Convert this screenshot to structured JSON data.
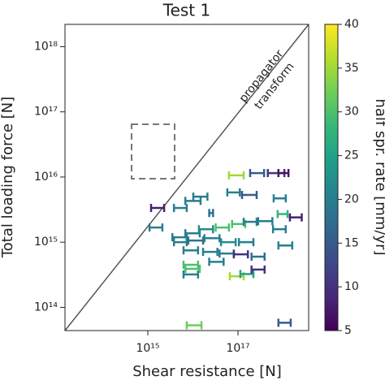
{
  "chart_data": {
    "type": "errorbar-scatter",
    "title": "Test 1",
    "x_label": "Shear resistance [N]",
    "y_label": "Total loading force [N]",
    "colorbar_label": "half spr. rate [mm/yr]",
    "annotations": [
      "propagator",
      "transform"
    ],
    "log_x": true,
    "log_y": true,
    "xlim": [
      14500000000000.0,
      3.7e+18
    ],
    "ylim": [
      44000000000000.0,
      2.2e+18
    ],
    "xticks": [
      {
        "value": 1000000000000000.0,
        "label": "10¹⁵"
      },
      {
        "value": 1e+17,
        "label": "10¹⁷"
      }
    ],
    "yticks": [
      {
        "value": 100000000000000.0,
        "label": "10¹⁴"
      },
      {
        "value": 1000000000000000.0,
        "label": "10¹⁵"
      },
      {
        "value": 1e+16,
        "label": "10¹⁶"
      },
      {
        "value": 1e+17,
        "label": "10¹⁷"
      },
      {
        "value": 1e+18,
        "label": "10¹⁸"
      }
    ],
    "colormap": [
      "#440154",
      "#482878",
      "#3e4989",
      "#31688e",
      "#26828e",
      "#1f9e89",
      "#35b779",
      "#6ece58",
      "#b5de2b",
      "#fde725"
    ],
    "clim": [
      5,
      40
    ],
    "cticks": [
      5,
      10,
      15,
      20,
      25,
      30,
      35,
      40
    ],
    "x_low": [
      6.3e+16,
      1.86e+17,
      4.6e+17,
      7.9e+17,
      3800000000000000.0,
      6800000000000000.0,
      1.02e+16,
      5.8e+16,
      1.23e+17,
      6.2e+17,
      2.3e+16,
      7.6e+17,
      1.42e+18,
      1090000000000000.0,
      3500000000000000.0,
      6800000000000000.0,
      1.36e+16,
      3.2e+16,
      7.4e+16,
      1.34e+17,
      2.8e+17,
      6e+17,
      3800000000000000.0,
      7900000000000000.0,
      1.8e+16,
      4.2e+16,
      1.05e+17,
      7.9e+17,
      6200000000000000.0,
      1.68e+16,
      3.9e+16,
      8.1e+16,
      2e+17,
      6200000000000000.0,
      2.3e+16,
      6.6e+16,
      1.13e+17,
      2e+17,
      6200000000000000.0,
      6800000000000000.0,
      7300000000000000.0,
      7.9e+17,
      1180000000000000.0
    ],
    "x_high": [
      1.34e+17,
      3.8e+17,
      1.07e+18,
      1.32e+18,
      7300000000000000.0,
      1.48e+16,
      2.1e+16,
      1.1e+17,
      2.6e+17,
      1.15e+18,
      2.8e+16,
      1.26e+18,
      2.6e+18,
      2100000000000000.0,
      7300000000000000.0,
      1.42e+16,
      2.8e+16,
      6.3e+16,
      1.45e+17,
      2.6e+17,
      5.8e+17,
      1.15e+18,
      7300000000000000.0,
      1.68e+16,
      3.9e+16,
      8.9e+16,
      2.2e+17,
      1.6e+18,
      1.3e+16,
      3.5e+16,
      8.1e+16,
      1.66e+17,
      3.9e+17,
      1.3e+16,
      4.8e+16,
      1.34e+17,
      2.2e+17,
      3.9e+17,
      1.3e+16,
      1.42e+16,
      1.55e+16,
      1.48e+18,
      2300000000000000.0
    ],
    "y": [
      1.06e+16,
      1.15e+16,
      1.15e+16,
      1.15e+16,
      3350000000000000.0,
      4300000000000000.0,
      5000000000000000.0,
      5800000000000000.0,
      5300000000000000.0,
      4700000000000000.0,
      2800000000000000.0,
      2700000000000000.0,
      2400000000000000.0,
      1680000000000000.0,
      1190000000000000.0,
      1370000000000000.0,
      1580000000000000.0,
      1680000000000000.0,
      1900000000000000.0,
      2050000000000000.0,
      2100000000000000.0,
      1580000000000000.0,
      1000000000000000.0,
      1060000000000000.0,
      1150000000000000.0,
      1000000000000000.0,
      1000000000000000.0,
      890000000000000.0,
      750000000000000.0,
      710000000000000.0,
      670000000000000.0,
      650000000000000.0,
      600000000000000.0,
      450000000000000.0,
      500000000000000.0,
      300000000000000.0,
      325000000000000.0,
      380000000000000.0,
      320000000000000.0,
      390000000000000.0,
      53000000000000.0,
      58000000000000.0,
      3350000000000000.0
    ],
    "c": [
      35,
      15,
      10,
      7,
      20,
      20,
      20,
      20,
      15,
      20,
      18,
      28,
      8,
      20,
      20,
      20,
      22,
      30,
      30,
      20,
      20,
      20,
      20,
      18,
      20,
      22,
      20,
      20,
      20,
      20,
      20,
      10,
      18,
      30,
      20,
      35,
      25,
      10,
      20,
      30,
      32,
      15,
      8
    ]
  }
}
